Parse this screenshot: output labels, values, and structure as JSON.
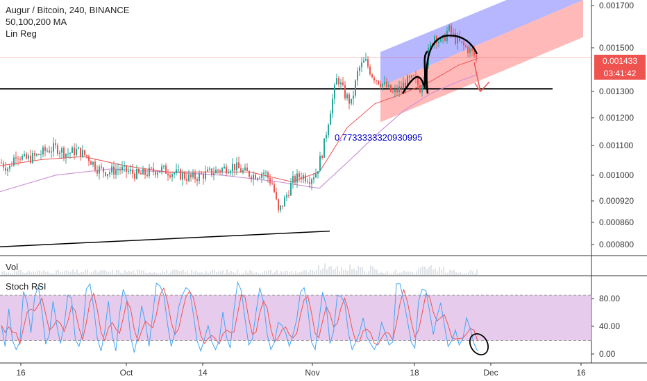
{
  "header": {
    "title": "Augur / Bitcoin, 240, BINANCE",
    "ma": "50,100,200 MA",
    "linreg": "Lin Reg"
  },
  "price_tag": {
    "price": "0.001433",
    "countdown": "03:41:42",
    "color": "#ef5350"
  },
  "annotation_value": "0.7733333320930995",
  "panes": {
    "vol_label": "Vol",
    "stoch_label": "Stoch RSI"
  },
  "colors": {
    "up": "#26a69a",
    "down": "#ef5350",
    "ma_red": "#ef5350",
    "ma_purple": "#ce93d8",
    "channel_upper": "#7b7bff",
    "channel_lower": "#ff8a8a",
    "stoch_band": "#e1bee7",
    "stoch_k": "#42a5f5",
    "stoch_d": "#ef5350",
    "annotation": "#0000cc"
  },
  "chart_data": [
    {
      "type": "candlestick",
      "title": "Augur / Bitcoin, 240, BINANCE",
      "x_ticks": [
        "16",
        "Oct",
        "14",
        "Nov",
        "18",
        "Dec",
        "16"
      ],
      "y_ticks": [
        "0.001700",
        "0.001500",
        "0.001300",
        "0.001200",
        "0.001100",
        "0.001000",
        "0.000920",
        "0.000860",
        "0.000800"
      ],
      "ylim": [
        0.00077,
        0.00172
      ],
      "scale": "log",
      "last_price": 0.001433,
      "horizontal_line": 0.0013,
      "price_path": [
        [
          0,
          0.00103
        ],
        [
          12,
          0.00101
        ],
        [
          22,
          0.00106
        ],
        [
          35,
          0.00104
        ],
        [
          50,
          0.00105
        ],
        [
          65,
          0.00107
        ],
        [
          80,
          0.00108
        ],
        [
          95,
          0.00106
        ],
        [
          110,
          0.00107
        ],
        [
          125,
          0.00105
        ],
        [
          140,
          0.00101
        ],
        [
          155,
          0.001
        ],
        [
          170,
          0.00101
        ],
        [
          185,
          0.001
        ],
        [
          200,
          0.00099
        ],
        [
          215,
          0.001
        ],
        [
          230,
          0.00101
        ],
        [
          245,
          0.001
        ],
        [
          260,
          0.00099
        ],
        [
          275,
          0.00098
        ],
        [
          290,
          0.00099
        ],
        [
          305,
          0.001
        ],
        [
          320,
          0.00101
        ],
        [
          335,
          0.00102
        ],
        [
          350,
          0.001
        ],
        [
          365,
          0.00099
        ],
        [
          380,
          0.001
        ],
        [
          392,
          0.00096
        ],
        [
          400,
          0.00088
        ],
        [
          410,
          0.00092
        ],
        [
          420,
          0.00097
        ],
        [
          432,
          0.00099
        ],
        [
          445,
          0.00098
        ],
        [
          455,
          0.001
        ],
        [
          465,
          0.00108
        ],
        [
          475,
          0.00122
        ],
        [
          485,
          0.00135
        ],
        [
          495,
          0.00128
        ],
        [
          505,
          0.00124
        ],
        [
          515,
          0.00138
        ],
        [
          525,
          0.00142
        ],
        [
          535,
          0.00136
        ],
        [
          545,
          0.00133
        ],
        [
          555,
          0.00131
        ],
        [
          565,
          0.00128
        ],
        [
          575,
          0.0013
        ],
        [
          585,
          0.00133
        ],
        [
          595,
          0.00134
        ],
        [
          605,
          0.0013
        ],
        [
          615,
          0.00145
        ],
        [
          625,
          0.00154
        ],
        [
          635,
          0.0015
        ],
        [
          645,
          0.00157
        ],
        [
          655,
          0.00152
        ],
        [
          665,
          0.00149
        ],
        [
          675,
          0.00147
        ],
        [
          685,
          0.001433
        ]
      ],
      "ma50_path": [
        [
          0,
          0.00102
        ],
        [
          60,
          0.00104
        ],
        [
          120,
          0.00105
        ],
        [
          180,
          0.00102
        ],
        [
          240,
          0.001
        ],
        [
          300,
          0.001
        ],
        [
          360,
          0.001
        ],
        [
          420,
          0.00097
        ],
        [
          460,
          0.001
        ],
        [
          500,
          0.00115
        ],
        [
          540,
          0.00124
        ],
        [
          580,
          0.00128
        ],
        [
          620,
          0.00133
        ],
        [
          660,
          0.0014
        ],
        [
          688,
          0.00143
        ]
      ],
      "ma200_path": [
        [
          0,
          0.00094
        ],
        [
          80,
          0.00099
        ],
        [
          160,
          0.00101
        ],
        [
          240,
          0.001
        ],
        [
          320,
          0.00099
        ],
        [
          400,
          0.00097
        ],
        [
          460,
          0.00095
        ],
        [
          500,
          0.00103
        ],
        [
          540,
          0.00112
        ],
        [
          580,
          0.00121
        ],
        [
          620,
          0.00128
        ],
        [
          660,
          0.00133
        ],
        [
          688,
          0.00136
        ]
      ],
      "support_line": [
        [
          0,
          0.00079
        ],
        [
          475,
          0.00083
        ]
      ],
      "channel": {
        "x": [
          548,
          840
        ],
        "upper": [
          0.00146,
          0.0019
        ],
        "mid": [
          0.00131,
          0.00172
        ],
        "lower": [
          0.00117,
          0.00153
        ]
      }
    },
    {
      "type": "line",
      "title": "Stoch RSI",
      "y_ticks": [
        "80.00",
        "40.00",
        "0.00"
      ],
      "ylim": [
        -8,
        104
      ],
      "band": [
        20,
        80
      ],
      "series": [
        {
          "name": "K",
          "values": [
            40,
            12,
            62,
            20,
            8,
            18,
            85,
            70,
            30,
            78,
            92,
            58,
            15,
            28,
            72,
            40,
            16,
            40,
            80,
            76,
            22,
            12,
            30,
            88,
            95,
            64,
            22,
            6,
            32,
            72,
            28,
            6,
            55,
            88,
            74,
            25,
            4,
            28,
            66,
            44,
            12,
            55,
            96,
            92,
            80,
            42,
            12,
            30,
            64,
            80,
            90,
            86,
            55,
            20,
            6,
            22,
            40,
            18,
            8,
            20,
            58,
            24,
            10,
            60,
            97,
            86,
            48,
            14,
            22,
            58,
            90,
            70,
            28,
            8,
            18,
            44,
            40,
            30,
            12,
            28,
            48,
            84,
            90,
            62,
            18,
            8,
            45,
            84,
            66,
            16,
            32,
            80,
            78,
            70,
            30,
            8,
            18,
            30,
            50,
            25,
            16,
            8,
            18,
            44,
            30,
            14,
            18,
            95,
            95,
            72,
            46,
            18,
            10,
            72,
            88,
            86,
            58,
            28,
            52,
            70,
            40,
            12,
            20,
            34,
            14,
            22,
            50,
            36,
            16,
            6
          ]
        }
      ]
    }
  ]
}
